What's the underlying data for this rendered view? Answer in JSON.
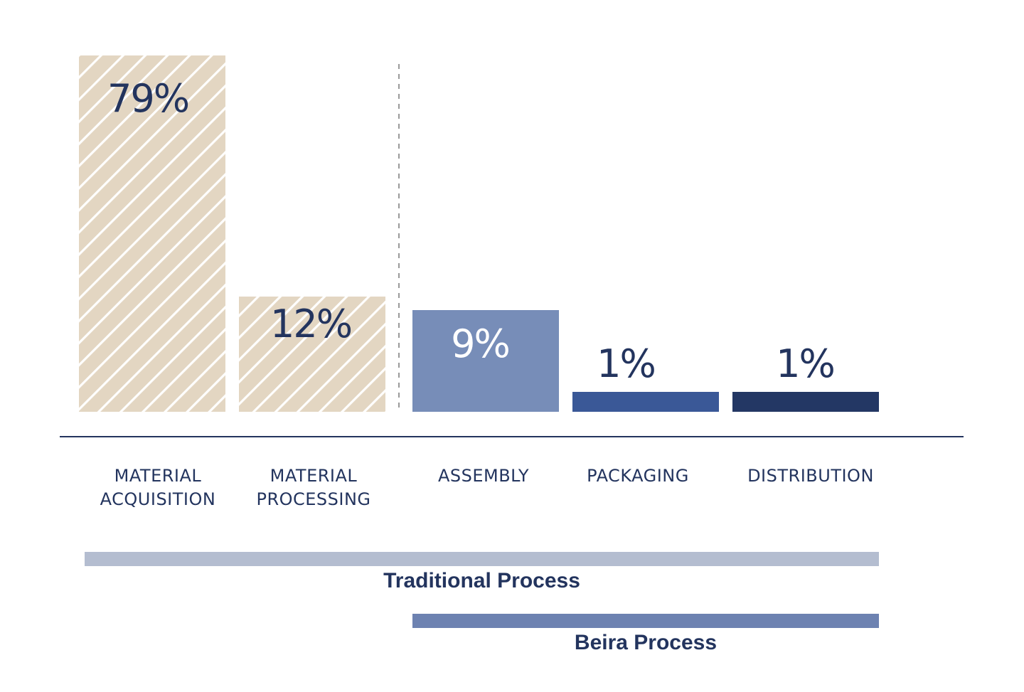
{
  "colors": {
    "text": "#23345e",
    "hatch_fill": "#e3d6c2",
    "hatch_stripe": "#ffffff",
    "assembly": "#778db8",
    "packaging": "#3a5897",
    "distribution": "#233764",
    "traditional_bar": "#b4bdd0",
    "beira_bar": "#6d82b1",
    "baseline": "#23345e",
    "divider": "#9a9a9a"
  },
  "chart_data": {
    "type": "bar",
    "categories": [
      [
        "MATERIAL",
        "ACQUISITION"
      ],
      [
        "MATERIAL",
        "PROCESSING"
      ],
      [
        "ASSEMBLY"
      ],
      [
        "PACKAGING"
      ],
      [
        "DISTRIBUTION"
      ]
    ],
    "values": [
      79,
      12,
      9,
      1,
      1
    ],
    "value_labels": [
      "79%",
      "12%",
      "9%",
      "1%",
      "1%"
    ],
    "value_label_colors": [
      "#23345e",
      "#23345e",
      "#ffffff",
      "#23345e",
      "#23345e"
    ],
    "bar_styles": [
      "hatched",
      "hatched",
      "assembly",
      "packaging",
      "distribution"
    ],
    "ylim": [
      0,
      79
    ],
    "grid": false,
    "legend": "none",
    "process_ranges": [
      {
        "label": "Traditional Process",
        "from": 0,
        "to": 4,
        "color": "#b4bdd0"
      },
      {
        "label": "Beira Process",
        "from": 2,
        "to": 4,
        "color": "#6d82b1"
      }
    ]
  }
}
